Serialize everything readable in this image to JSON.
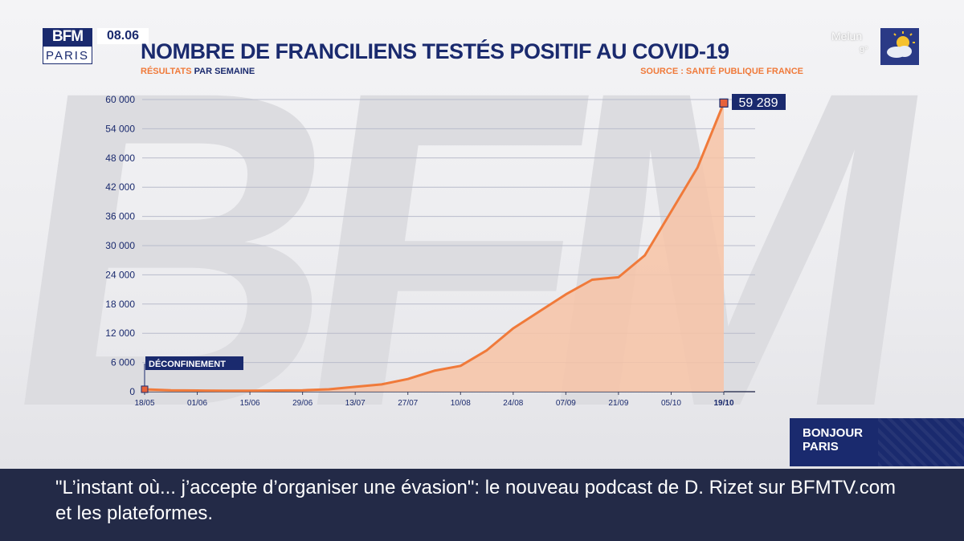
{
  "channel": {
    "logo_top": "BFM",
    "logo_bottom": "PARIS",
    "time": "08.06"
  },
  "weather": {
    "city": "Melun",
    "temp": "9°",
    "icon": "sun-cloud-icon"
  },
  "show": {
    "line1": "BONJOUR",
    "line2": "PARIS"
  },
  "ticker": {
    "text": "\"L’instant où... j’accepte d’organiser une évasion\": le nouveau podcast de D. Rizet sur BFMTV.com et les plateformes."
  },
  "colors": {
    "accent": "#f07a3a",
    "navy": "#1a2a6e",
    "area": "#f7c3a6"
  },
  "chart_data": {
    "type": "area",
    "title": "NOMBRE DE FRANCILIENS TESTÉS POSITIF AU COVID-19",
    "subtitle_highlight": "RÉSULTATS",
    "subtitle_rest": " PAR SEMAINE",
    "source": "SOURCE : SANTÉ PUBLIQUE FRANCE",
    "ylim": [
      0,
      60000
    ],
    "yticks": [
      0,
      6000,
      12000,
      18000,
      24000,
      30000,
      36000,
      42000,
      48000,
      54000,
      60000
    ],
    "ytick_labels": [
      "0",
      "6 000",
      "12 000",
      "18 000",
      "24 000",
      "30 000",
      "36 000",
      "42 000",
      "48 000",
      "54 000",
      "60 000"
    ],
    "x_tick_labels": [
      "18/05",
      "01/06",
      "15/06",
      "29/06",
      "13/07",
      "27/07",
      "10/08",
      "24/08",
      "07/09",
      "21/09",
      "05/10",
      "19/10"
    ],
    "x": [
      "18/05",
      "25/05",
      "01/06",
      "08/06",
      "15/06",
      "22/06",
      "29/06",
      "06/07",
      "13/07",
      "20/07",
      "27/07",
      "03/08",
      "10/08",
      "17/08",
      "24/08",
      "31/08",
      "07/09",
      "14/09",
      "21/09",
      "28/09",
      "05/10",
      "12/10",
      "19/10"
    ],
    "values": [
      500,
      300,
      250,
      200,
      200,
      250,
      300,
      500,
      1000,
      1500,
      2600,
      4300,
      5300,
      8500,
      13000,
      16500,
      20000,
      23000,
      23500,
      28000,
      37000,
      46000,
      59289
    ],
    "annotations": [
      {
        "label": "DÉCONFINEMENT",
        "at": "18/05"
      },
      {
        "label": "59 289",
        "at": "19/10"
      }
    ],
    "grid": true
  }
}
